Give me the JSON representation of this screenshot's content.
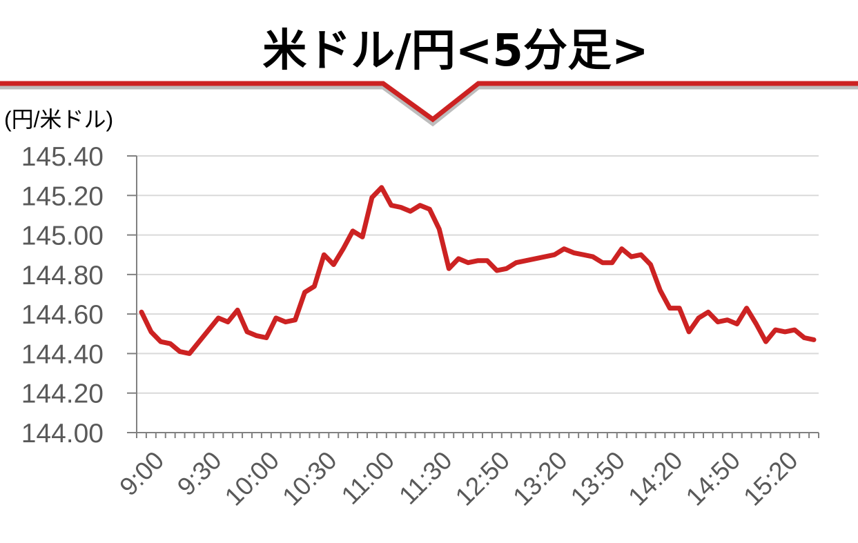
{
  "chart_data": {
    "type": "line",
    "title": "米ドル/円<5分足>",
    "ylabel": "(円/米ドル)",
    "xlabel": "",
    "ylim": [
      144.0,
      145.4
    ],
    "yticks": [
      "144.00",
      "144.20",
      "144.40",
      "144.60",
      "144.80",
      "145.00",
      "145.20",
      "145.40"
    ],
    "ytick_values": [
      144.0,
      144.2,
      144.4,
      144.6,
      144.8,
      145.0,
      145.2,
      145.4
    ],
    "x_tick_labels": [
      "9:00",
      "9:30",
      "10:00",
      "10:30",
      "11:00",
      "11:30",
      "12:50",
      "13:20",
      "13:50",
      "14:20",
      "14:50",
      "15:20"
    ],
    "x_tick_every": 6,
    "grid": true,
    "colors": {
      "line": "#cc2222",
      "title_rule": "#cc2222",
      "grid": "#d9d9d9",
      "axis": "#808080",
      "tick_text": "#595959"
    },
    "series": [
      {
        "values": [
          144.61,
          144.51,
          144.46,
          144.45,
          144.41,
          144.4,
          144.46,
          144.52,
          144.58,
          144.56,
          144.62,
          144.51,
          144.49,
          144.48,
          144.58,
          144.56,
          144.57,
          144.71,
          144.74,
          144.9,
          144.85,
          144.93,
          145.02,
          144.99,
          145.19,
          145.24,
          145.15,
          145.14,
          145.12,
          145.15,
          145.13,
          145.03,
          144.83,
          144.88,
          144.86,
          144.87,
          144.87,
          144.82,
          144.83,
          144.86,
          144.87,
          144.88,
          144.89,
          144.9,
          144.93,
          144.91,
          144.9,
          144.89,
          144.86,
          144.86,
          144.93,
          144.89,
          144.9,
          144.85,
          144.72,
          144.63,
          144.63,
          144.51,
          144.58,
          144.61,
          144.56,
          144.57,
          144.55,
          144.63,
          144.55,
          144.46,
          144.52,
          144.51,
          144.52,
          144.48,
          144.47
        ]
      }
    ]
  }
}
